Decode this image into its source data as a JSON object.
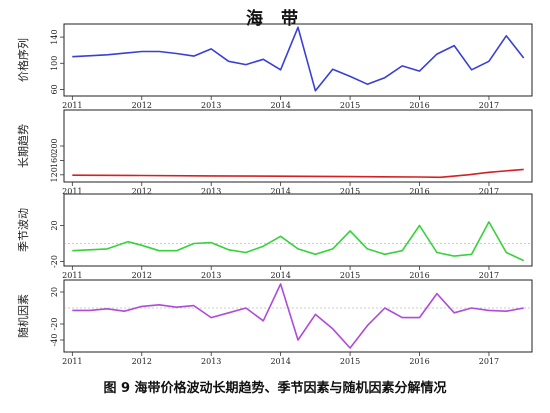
{
  "title": "海 带",
  "caption": "图 9 海带价格波动长期趋势、季节因素与随机因素分解情况",
  "chart_data": [
    {
      "type": "line",
      "ylabel": "价格序列",
      "color": "#3a3fd6",
      "ylim": [
        50,
        160
      ],
      "yticks": [
        60,
        100,
        140
      ],
      "x_years": [
        "2011",
        "2012",
        "2013",
        "2014",
        "2015",
        "2016",
        "2017"
      ],
      "x": [
        2011.0,
        2011.5,
        2012.0,
        2012.25,
        2012.5,
        2012.75,
        2013.0,
        2013.25,
        2013.5,
        2013.75,
        2014.0,
        2014.25,
        2014.5,
        2014.75,
        2015.0,
        2015.25,
        2015.5,
        2015.75,
        2016.0,
        2016.25,
        2016.5,
        2016.75,
        2017.0,
        2017.25,
        2017.5
      ],
      "y": [
        110,
        113,
        118,
        118,
        115,
        111,
        122,
        103,
        98,
        106,
        90,
        155,
        58,
        91,
        80,
        68,
        78,
        96,
        88,
        114,
        127,
        90,
        103,
        142,
        108
      ]
    },
    {
      "type": "line",
      "ylabel": "长期趋势",
      "color": "#d42020",
      "ylim": [
        100,
        300
      ],
      "yticks": [
        120,
        160,
        200
      ],
      "x_years": [
        "2011",
        "2012",
        "2013",
        "2014",
        "2015",
        "2016",
        "2017"
      ],
      "x": [
        2011.0,
        2012.0,
        2013.0,
        2014.0,
        2015.0,
        2016.0,
        2016.3,
        2016.7,
        2017.0,
        2017.5
      ],
      "y": [
        119,
        118,
        117,
        116,
        115,
        114,
        113,
        120,
        127,
        135
      ]
    },
    {
      "type": "line",
      "ylabel": "季节波动",
      "color": "#36d23a",
      "ylim": [
        -25,
        55
      ],
      "yticks": [
        -20,
        20
      ],
      "x_years": [
        "2011",
        "2012",
        "2013",
        "2014",
        "2015",
        "2016",
        "2017"
      ],
      "x": [
        2011.0,
        2011.5,
        2011.8,
        2012.0,
        2012.25,
        2012.5,
        2012.75,
        2013.0,
        2013.25,
        2013.5,
        2013.75,
        2014.0,
        2014.25,
        2014.5,
        2014.75,
        2015.0,
        2015.25,
        2015.5,
        2015.75,
        2016.0,
        2016.25,
        2016.5,
        2016.75,
        2017.0,
        2017.25,
        2017.5
      ],
      "y": [
        -8,
        -6,
        2,
        -2,
        -8,
        -8,
        0,
        1,
        -7,
        -10,
        -3,
        8,
        -6,
        -12,
        -6,
        14,
        -6,
        -12,
        -8,
        20,
        -10,
        -14,
        -12,
        24,
        -10,
        -19
      ]
    },
    {
      "type": "line",
      "ylabel": "随机因素",
      "color": "#b04ad8",
      "ylim": [
        -55,
        35
      ],
      "yticks": [
        -40,
        -20,
        20
      ],
      "x_years": [
        "2011",
        "2012",
        "2013",
        "2014",
        "2015",
        "2016",
        "2017"
      ],
      "x": [
        2011.0,
        2011.25,
        2011.5,
        2011.75,
        2012.0,
        2012.25,
        2012.5,
        2012.75,
        2013.0,
        2013.25,
        2013.5,
        2013.75,
        2014.0,
        2014.25,
        2014.5,
        2014.75,
        2015.0,
        2015.25,
        2015.5,
        2015.75,
        2016.0,
        2016.25,
        2016.5,
        2016.75,
        2017.0,
        2017.25,
        2017.5
      ],
      "y": [
        -3,
        -3,
        -1,
        -4,
        2,
        4,
        1,
        3,
        -12,
        -6,
        0,
        -16,
        30,
        -40,
        -8,
        -26,
        -50,
        -22,
        0,
        -12,
        -12,
        18,
        -6,
        0,
        -3,
        -4,
        0
      ]
    }
  ]
}
